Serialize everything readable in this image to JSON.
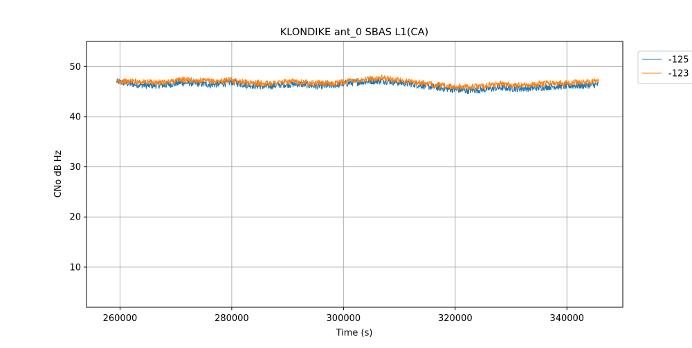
{
  "chart_data": {
    "type": "line",
    "title": "KLONDIKE ant_0 SBAS L1(CA)",
    "xlabel": "Time (s)",
    "ylabel": "CNo dB Hz",
    "xlim": [
      254000,
      350000
    ],
    "ylim": [
      2,
      55
    ],
    "xticks": [
      260000,
      280000,
      300000,
      320000,
      340000
    ],
    "xtick_labels": [
      "260000",
      "280000",
      "300000",
      "320000",
      "340000"
    ],
    "yticks": [
      10,
      20,
      30,
      40,
      50
    ],
    "ytick_labels": [
      "10",
      "20",
      "30",
      "40",
      "50"
    ],
    "grid": true,
    "legend_position": "outside-top-right",
    "series": [
      {
        "name": "-125",
        "color": "#1f77b4",
        "x": [
          259400,
          262000,
          265000,
          268000,
          271000,
          274000,
          277000,
          280000,
          283000,
          286000,
          289000,
          292000,
          295000,
          298000,
          301000,
          304000,
          307000,
          310000,
          313000,
          316000,
          319000,
          322000,
          325000,
          328000,
          331000,
          334000,
          337000,
          340000,
          343000,
          345700
        ],
        "y": [
          47.0,
          46.5,
          46.2,
          46.3,
          46.8,
          46.6,
          46.4,
          46.9,
          46.3,
          46.0,
          46.4,
          46.5,
          46.1,
          46.2,
          46.7,
          47.0,
          47.2,
          46.8,
          46.4,
          45.9,
          45.5,
          45.2,
          45.4,
          45.8,
          45.6,
          45.7,
          46.0,
          46.1,
          46.2,
          46.4
        ],
        "band": 1.4
      },
      {
        "name": "-123",
        "color": "#ff7f0e",
        "x": [
          259400,
          262000,
          265000,
          268000,
          271000,
          274000,
          277000,
          280000,
          283000,
          286000,
          289000,
          292000,
          295000,
          298000,
          301000,
          304000,
          307000,
          310000,
          313000,
          316000,
          319000,
          322000,
          325000,
          328000,
          331000,
          334000,
          337000,
          340000,
          343000,
          345700
        ],
        "y": [
          47.0,
          47.1,
          46.9,
          46.8,
          47.4,
          47.2,
          47.0,
          47.3,
          46.8,
          46.6,
          46.9,
          47.0,
          46.7,
          46.6,
          47.1,
          47.5,
          47.7,
          47.3,
          46.9,
          46.4,
          46.0,
          45.9,
          46.1,
          46.5,
          46.3,
          46.4,
          46.7,
          46.8,
          46.9,
          47.1
        ],
        "band": 1.2
      }
    ]
  }
}
